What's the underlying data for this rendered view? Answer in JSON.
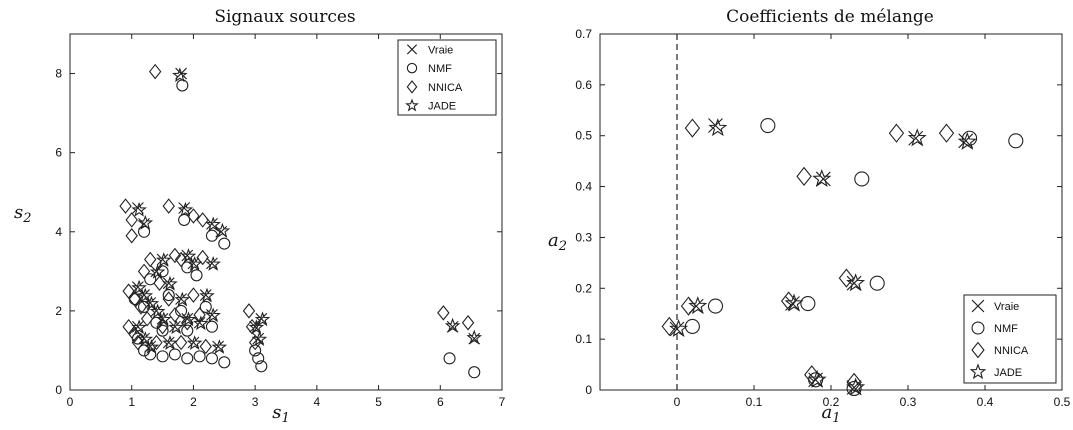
{
  "chart_data": [
    {
      "type": "scatter",
      "title": "Signaux sources",
      "xlabel": "s",
      "xlabel_sub": "1",
      "ylabel": "s",
      "ylabel_sub": "2",
      "xlim": [
        0,
        7
      ],
      "ylim": [
        0,
        9
      ],
      "xticks": [
        "0",
        "1",
        "2",
        "3",
        "4",
        "5",
        "6",
        "7"
      ],
      "xtick_values": [
        0,
        1,
        2,
        3,
        4,
        5,
        6,
        7
      ],
      "yticks": [
        "0",
        "2",
        "4",
        "6",
        "8"
      ],
      "ytick_values": [
        0,
        2,
        4,
        6,
        8
      ],
      "legend_position": "top-right",
      "series": [
        {
          "name": "Vraie",
          "marker": "x",
          "points": [
            [
              1.8,
              8.0
            ],
            [
              1.1,
              4.6
            ],
            [
              1.2,
              4.2
            ],
            [
              1.85,
              4.6
            ],
            [
              2.3,
              4.2
            ],
            [
              2.45,
              4.0
            ],
            [
              1.5,
              3.3
            ],
            [
              1.9,
              3.4
            ],
            [
              2.0,
              3.2
            ],
            [
              2.3,
              3.2
            ],
            [
              1.4,
              3.0
            ],
            [
              1.6,
              2.7
            ],
            [
              1.1,
              2.6
            ],
            [
              1.2,
              2.4
            ],
            [
              1.3,
              2.2
            ],
            [
              1.4,
              2.0
            ],
            [
              1.8,
              2.3
            ],
            [
              2.2,
              2.4
            ],
            [
              1.5,
              1.8
            ],
            [
              1.7,
              1.6
            ],
            [
              1.9,
              1.8
            ],
            [
              2.1,
              1.7
            ],
            [
              2.3,
              1.9
            ],
            [
              1.1,
              1.6
            ],
            [
              1.2,
              1.3
            ],
            [
              1.3,
              1.1
            ],
            [
              1.6,
              1.2
            ],
            [
              2.0,
              1.2
            ],
            [
              2.4,
              1.1
            ],
            [
              3.0,
              1.6
            ],
            [
              3.05,
              1.3
            ],
            [
              3.1,
              1.8
            ],
            [
              6.2,
              1.6
            ],
            [
              6.55,
              1.3
            ]
          ]
        },
        {
          "name": "NMF",
          "marker": "o",
          "points": [
            [
              1.82,
              7.7
            ],
            [
              1.2,
              4.0
            ],
            [
              1.85,
              4.3
            ],
            [
              2.3,
              3.9
            ],
            [
              2.5,
              3.7
            ],
            [
              1.5,
              3.0
            ],
            [
              1.9,
              3.1
            ],
            [
              2.05,
              2.9
            ],
            [
              1.3,
              2.8
            ],
            [
              1.6,
              2.4
            ],
            [
              1.05,
              2.3
            ],
            [
              1.2,
              2.1
            ],
            [
              1.4,
              1.7
            ],
            [
              1.8,
              2.0
            ],
            [
              2.2,
              2.1
            ],
            [
              1.5,
              1.5
            ],
            [
              1.9,
              1.5
            ],
            [
              2.3,
              1.6
            ],
            [
              1.1,
              1.3
            ],
            [
              1.2,
              1.0
            ],
            [
              1.3,
              0.9
            ],
            [
              1.5,
              0.85
            ],
            [
              1.7,
              0.9
            ],
            [
              1.9,
              0.8
            ],
            [
              2.1,
              0.85
            ],
            [
              2.3,
              0.8
            ],
            [
              2.5,
              0.7
            ],
            [
              3.0,
              1.0
            ],
            [
              3.05,
              0.8
            ],
            [
              3.1,
              0.6
            ],
            [
              6.15,
              0.8
            ],
            [
              6.55,
              0.45
            ]
          ]
        },
        {
          "name": "NNICA",
          "marker": "diamond",
          "points": [
            [
              1.38,
              8.05
            ],
            [
              0.9,
              4.65
            ],
            [
              1.0,
              4.3
            ],
            [
              1.6,
              4.65
            ],
            [
              2.0,
              4.4
            ],
            [
              2.15,
              4.3
            ],
            [
              1.3,
              3.3
            ],
            [
              1.7,
              3.4
            ],
            [
              1.8,
              3.3
            ],
            [
              2.15,
              3.35
            ],
            [
              1.0,
              3.9
            ],
            [
              1.2,
              3.0
            ],
            [
              1.45,
              2.7
            ],
            [
              0.95,
              2.5
            ],
            [
              1.05,
              2.3
            ],
            [
              1.15,
              2.1
            ],
            [
              1.6,
              2.3
            ],
            [
              2.0,
              2.4
            ],
            [
              1.25,
              1.8
            ],
            [
              1.5,
              1.6
            ],
            [
              1.7,
              1.9
            ],
            [
              1.9,
              1.7
            ],
            [
              2.1,
              1.9
            ],
            [
              0.95,
              1.6
            ],
            [
              1.05,
              1.4
            ],
            [
              1.1,
              1.2
            ],
            [
              1.4,
              1.2
            ],
            [
              1.8,
              1.2
            ],
            [
              2.2,
              1.1
            ],
            [
              2.9,
              2.0
            ],
            [
              2.95,
              1.6
            ],
            [
              3.0,
              1.2
            ],
            [
              6.05,
              1.95
            ],
            [
              6.45,
              1.7
            ]
          ]
        },
        {
          "name": "JADE",
          "marker": "star",
          "points": [
            [
              1.78,
              7.95
            ],
            [
              1.12,
              4.55
            ],
            [
              1.22,
              4.22
            ],
            [
              1.87,
              4.55
            ],
            [
              2.32,
              4.18
            ],
            [
              2.47,
              4.02
            ],
            [
              1.52,
              3.28
            ],
            [
              1.92,
              3.38
            ],
            [
              2.02,
              3.18
            ],
            [
              2.32,
              3.18
            ],
            [
              1.42,
              2.98
            ],
            [
              1.62,
              2.68
            ],
            [
              1.12,
              2.58
            ],
            [
              1.22,
              2.38
            ],
            [
              1.32,
              2.18
            ],
            [
              1.42,
              1.98
            ],
            [
              1.82,
              2.28
            ],
            [
              2.22,
              2.38
            ],
            [
              1.52,
              1.78
            ],
            [
              1.72,
              1.58
            ],
            [
              1.92,
              1.78
            ],
            [
              2.12,
              1.68
            ],
            [
              2.32,
              1.88
            ],
            [
              1.12,
              1.58
            ],
            [
              1.22,
              1.28
            ],
            [
              1.32,
              1.08
            ],
            [
              1.62,
              1.18
            ],
            [
              2.02,
              1.18
            ],
            [
              2.42,
              1.08
            ],
            [
              3.02,
              1.58
            ],
            [
              3.07,
              1.28
            ],
            [
              3.12,
              1.78
            ],
            [
              6.2,
              1.62
            ],
            [
              6.55,
              1.32
            ]
          ]
        }
      ]
    },
    {
      "type": "scatter",
      "title": "Coefficients de mélange",
      "xlabel": "a",
      "xlabel_sub": "1",
      "ylabel": "a",
      "ylabel_sub": "2",
      "xlim": [
        -0.1,
        0.5
      ],
      "ylim": [
        0,
        0.7
      ],
      "xticks": [
        "0",
        "0.1",
        "0.2",
        "0.3",
        "0.4",
        "0.5"
      ],
      "xtick_values": [
        0,
        0.1,
        0.2,
        0.3,
        0.4,
        0.5
      ],
      "yticks": [
        "0",
        "0.1",
        "0.2",
        "0.3",
        "0.4",
        "0.5",
        "0.6",
        "0.7"
      ],
      "ytick_values": [
        0,
        0.1,
        0.2,
        0.3,
        0.4,
        0.5,
        0.6,
        0.7
      ],
      "reference_line_x": 0,
      "legend_position": "bottom-right",
      "series": [
        {
          "name": "Vraie",
          "marker": "x",
          "points": [
            [
              0.0,
              0.12
            ],
            [
              0.025,
              0.165
            ],
            [
              0.05,
              0.52
            ],
            [
              0.15,
              0.17
            ],
            [
              0.18,
              0.02
            ],
            [
              0.19,
              0.415
            ],
            [
              0.23,
              0.21
            ],
            [
              0.23,
              0.005
            ],
            [
              0.31,
              0.495
            ],
            [
              0.375,
              0.49
            ]
          ]
        },
        {
          "name": "NMF",
          "marker": "o",
          "points": [
            [
              0.02,
              0.125
            ],
            [
              0.05,
              0.165
            ],
            [
              0.118,
              0.52
            ],
            [
              0.17,
              0.17
            ],
            [
              0.18,
              0.02
            ],
            [
              0.24,
              0.415
            ],
            [
              0.26,
              0.21
            ],
            [
              0.23,
              0.003
            ],
            [
              0.38,
              0.495
            ],
            [
              0.44,
              0.49
            ]
          ]
        },
        {
          "name": "NNICA",
          "marker": "diamond",
          "points": [
            [
              -0.01,
              0.125
            ],
            [
              0.015,
              0.165
            ],
            [
              0.02,
              0.515
            ],
            [
              0.145,
              0.175
            ],
            [
              0.175,
              0.03
            ],
            [
              0.165,
              0.42
            ],
            [
              0.22,
              0.22
            ],
            [
              0.23,
              0.015
            ],
            [
              0.285,
              0.505
            ],
            [
              0.35,
              0.505
            ]
          ]
        },
        {
          "name": "JADE",
          "marker": "star",
          "points": [
            [
              0.002,
              0.12
            ],
            [
              0.027,
              0.165
            ],
            [
              0.053,
              0.515
            ],
            [
              0.152,
              0.17
            ],
            [
              0.182,
              0.02
            ],
            [
              0.188,
              0.415
            ],
            [
              0.232,
              0.21
            ],
            [
              0.232,
              0.005
            ],
            [
              0.312,
              0.495
            ],
            [
              0.377,
              0.488
            ]
          ]
        }
      ]
    }
  ]
}
